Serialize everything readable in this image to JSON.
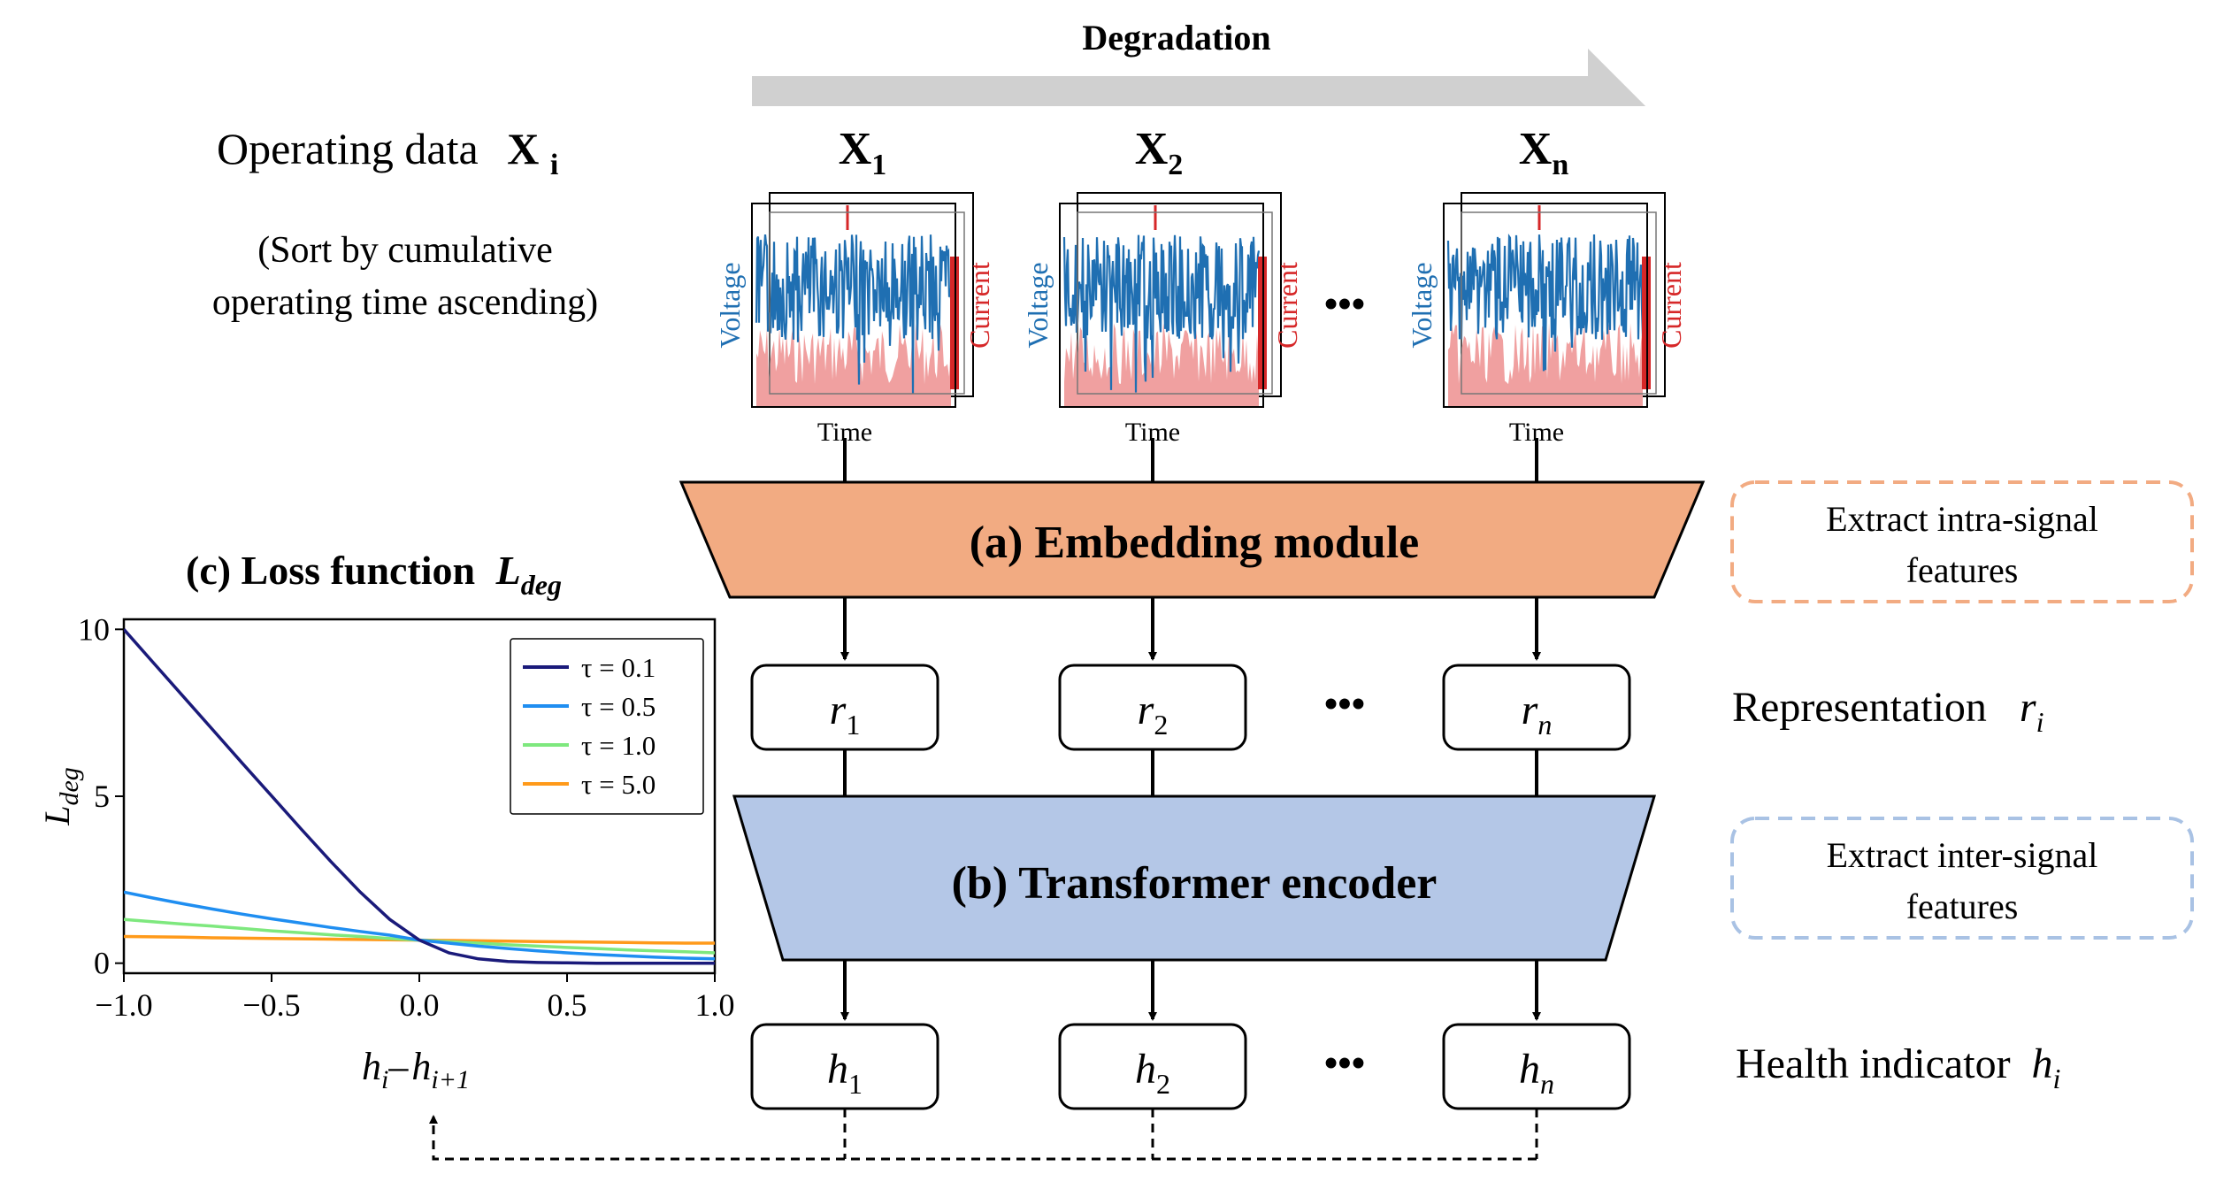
{
  "header": {
    "degradation_label": "Degradation",
    "operating_data_label": "Operating data",
    "operating_data_symbol": "X",
    "operating_data_subscript": "i",
    "sort_note_line1": "(Sort by cumulative",
    "sort_note_line2": "operating time ascending)"
  },
  "samples": [
    {
      "symbol": "X",
      "subscript": "1"
    },
    {
      "symbol": "X",
      "subscript": "2"
    },
    {
      "symbol": "X",
      "subscript": "n"
    }
  ],
  "signal_plot": {
    "left_axis_label": "Voltage",
    "right_axis_label": "Current",
    "x_axis_label": "Time",
    "colors": {
      "voltage": "#1f6fb2",
      "current_bg": "#f0a0a0",
      "current_line": "#d62728"
    }
  },
  "ellipsis": "•••",
  "modules": {
    "embedding": {
      "label": "(a) Embedding module",
      "fill": "#f2ab82",
      "note_line1": "Extract intra-signal",
      "note_line2": "features",
      "note_border": "#f2ab82"
    },
    "transformer": {
      "label": "(b) Transformer encoder",
      "fill": "#b4c7e7",
      "note_line1": "Extract inter-signal",
      "note_line2": "features",
      "note_border": "#a9c2e4"
    }
  },
  "representations": {
    "symbol": "r",
    "subscripts": [
      "1",
      "2",
      "n"
    ],
    "side_label": "Representation",
    "side_symbol": "r",
    "side_subscript": "i"
  },
  "health_indicators": {
    "symbol": "h",
    "subscripts": [
      "1",
      "2",
      "n"
    ],
    "side_label": "Health indicator",
    "side_symbol": "h",
    "side_subscript": "i"
  },
  "loss_panel": {
    "title_prefix": "(c) Loss function",
    "title_symbol": "L",
    "title_subscript": "deg",
    "xlabel_parts": [
      "h",
      "i",
      "–",
      "h",
      "i+1"
    ],
    "ylabel_symbol": "L",
    "ylabel_subscript": "deg"
  },
  "chart_data": {
    "type": "line",
    "x": [
      -1.0,
      -0.9,
      -0.8,
      -0.7,
      -0.6,
      -0.5,
      -0.4,
      -0.3,
      -0.2,
      -0.1,
      0.0,
      0.1,
      0.2,
      0.3,
      0.4,
      0.5,
      0.6,
      0.7,
      0.8,
      0.9,
      1.0
    ],
    "series": [
      {
        "name": "τ = 0.1",
        "color": "#1a1a7a",
        "values": [
          10.0,
          9.0,
          8.0,
          7.0,
          6.0,
          5.01,
          4.02,
          3.05,
          2.13,
          1.31,
          0.69,
          0.31,
          0.13,
          0.05,
          0.02,
          0.01,
          0.0,
          0.0,
          0.0,
          0.0,
          0.0
        ]
      },
      {
        "name": "τ = 0.5",
        "color": "#1f8ef1",
        "values": [
          2.13,
          1.95,
          1.78,
          1.62,
          1.47,
          1.33,
          1.2,
          1.07,
          0.95,
          0.84,
          0.69,
          0.6,
          0.51,
          0.44,
          0.37,
          0.31,
          0.26,
          0.22,
          0.18,
          0.15,
          0.13
        ]
      },
      {
        "name": "τ = 1.0",
        "color": "#7ee87e",
        "values": [
          1.31,
          1.24,
          1.17,
          1.11,
          1.04,
          0.97,
          0.91,
          0.85,
          0.8,
          0.74,
          0.69,
          0.64,
          0.6,
          0.55,
          0.51,
          0.47,
          0.44,
          0.4,
          0.37,
          0.34,
          0.31
        ]
      },
      {
        "name": "τ = 5.0",
        "color": "#ff9a1a",
        "values": [
          0.8,
          0.79,
          0.78,
          0.76,
          0.75,
          0.74,
          0.73,
          0.72,
          0.71,
          0.7,
          0.69,
          0.68,
          0.67,
          0.66,
          0.65,
          0.64,
          0.63,
          0.62,
          0.61,
          0.6,
          0.6
        ]
      }
    ],
    "xlim": [
      -1.0,
      1.0
    ],
    "ylim": [
      -0.3,
      10.3
    ],
    "xticks": [
      "−1.0",
      "−0.5",
      "0.0",
      "0.5",
      "1.0"
    ],
    "xtick_values": [
      -1.0,
      -0.5,
      0.0,
      0.5,
      1.0
    ],
    "yticks": [
      "0",
      "5",
      "10"
    ],
    "ytick_values": [
      0,
      5,
      10
    ],
    "legend_position": "top-right",
    "grid": false
  }
}
